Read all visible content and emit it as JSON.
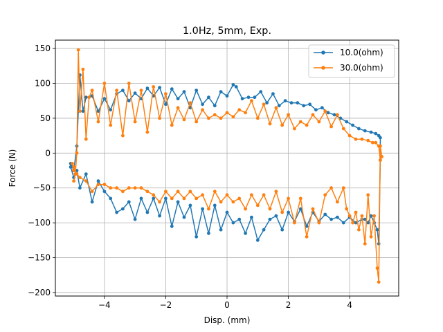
{
  "chart_data": {
    "type": "line",
    "title": "1.0Hz, 5mm, Exp.",
    "xlabel": "Disp. (mm)",
    "ylabel": "Force (N)",
    "xlim": [
      -5.6,
      5.6
    ],
    "ylim": [
      -205,
      162
    ],
    "xticks": [
      -4,
      -2,
      0,
      2,
      4
    ],
    "yticks": [
      -200,
      -150,
      -100,
      -50,
      0,
      50,
      100,
      150
    ],
    "grid": true,
    "legend_position": "top-right",
    "series": [
      {
        "name": "10.0(ohm)",
        "color": "#1f77b4",
        "x": [
          -5.0,
          -4.9,
          -4.8,
          -4.7,
          -4.6,
          -4.4,
          -4.2,
          -4.0,
          -3.8,
          -3.6,
          -3.4,
          -3.2,
          -3.0,
          -2.8,
          -2.6,
          -2.4,
          -2.2,
          -2.0,
          -1.8,
          -1.6,
          -1.4,
          -1.2,
          -1.0,
          -0.8,
          -0.6,
          -0.4,
          -0.2,
          0.0,
          0.2,
          0.3,
          0.5,
          0.7,
          0.9,
          1.1,
          1.3,
          1.5,
          1.7,
          1.9,
          2.1,
          2.3,
          2.5,
          2.7,
          2.9,
          3.1,
          3.3,
          3.5,
          3.7,
          3.9,
          4.1,
          4.3,
          4.5,
          4.7,
          4.85,
          4.95,
          5.0,
          5.0,
          4.95,
          4.9,
          4.8,
          4.7,
          4.6,
          4.5,
          4.4,
          4.2,
          4.0,
          3.8,
          3.6,
          3.4,
          3.2,
          3.0,
          2.8,
          2.6,
          2.4,
          2.2,
          2.0,
          1.8,
          1.6,
          1.4,
          1.2,
          1.0,
          0.8,
          0.6,
          0.4,
          0.2,
          0.0,
          -0.2,
          -0.4,
          -0.6,
          -0.8,
          -1.0,
          -1.2,
          -1.4,
          -1.6,
          -1.8,
          -2.0,
          -2.2,
          -2.4,
          -2.6,
          -2.8,
          -3.0,
          -3.2,
          -3.4,
          -3.6,
          -3.8,
          -4.0,
          -4.2,
          -4.4,
          -4.6,
          -4.8,
          -4.9,
          -5.0,
          -5.1,
          -5.1,
          -5.0
        ],
        "y": [
          -25,
          10,
          112,
          60,
          80,
          82,
          60,
          78,
          62,
          85,
          90,
          75,
          86,
          78,
          93,
          82,
          94,
          70,
          92,
          78,
          88,
          65,
          90,
          70,
          80,
          68,
          88,
          82,
          98,
          95,
          78,
          80,
          80,
          88,
          72,
          85,
          68,
          75,
          72,
          72,
          68,
          70,
          62,
          65,
          58,
          55,
          50,
          45,
          40,
          35,
          32,
          30,
          28,
          25,
          22,
          -10,
          -130,
          -110,
          -100,
          -90,
          -100,
          -95,
          -95,
          -100,
          -92,
          -100,
          -92,
          -95,
          -88,
          -98,
          -85,
          -105,
          -80,
          -98,
          -85,
          -110,
          -90,
          -95,
          -110,
          -125,
          -92,
          -115,
          -95,
          -100,
          -85,
          -110,
          -75,
          -115,
          -80,
          -120,
          -75,
          -92,
          -70,
          -105,
          -65,
          -90,
          -65,
          -85,
          -65,
          -95,
          -70,
          -80,
          -85,
          -65,
          -55,
          -40,
          -70,
          -30,
          -50,
          -25,
          -35,
          -20,
          -15,
          -25
        ]
      },
      {
        "name": "30.0(ohm)",
        "color": "#ff7f0e",
        "x": [
          -5.0,
          -4.95,
          -4.9,
          -4.85,
          -4.8,
          -4.7,
          -4.6,
          -4.5,
          -4.4,
          -4.2,
          -4.0,
          -3.8,
          -3.6,
          -3.4,
          -3.2,
          -3.0,
          -2.8,
          -2.6,
          -2.4,
          -2.2,
          -2.0,
          -1.8,
          -1.6,
          -1.4,
          -1.2,
          -1.0,
          -0.8,
          -0.6,
          -0.4,
          -0.2,
          0.0,
          0.2,
          0.4,
          0.6,
          0.8,
          1.0,
          1.2,
          1.4,
          1.6,
          1.8,
          2.0,
          2.2,
          2.4,
          2.6,
          2.8,
          3.0,
          3.2,
          3.4,
          3.6,
          3.8,
          4.0,
          4.2,
          4.4,
          4.6,
          4.75,
          4.85,
          4.95,
          5.0,
          5.05,
          5.0,
          4.95,
          4.9,
          4.8,
          4.7,
          4.6,
          4.5,
          4.4,
          4.3,
          4.2,
          4.1,
          4.0,
          3.9,
          3.8,
          3.6,
          3.4,
          3.2,
          3.0,
          2.8,
          2.6,
          2.4,
          2.2,
          2.0,
          1.8,
          1.6,
          1.4,
          1.2,
          1.0,
          0.8,
          0.6,
          0.4,
          0.2,
          0.0,
          -0.2,
          -0.4,
          -0.6,
          -0.8,
          -1.0,
          -1.2,
          -1.4,
          -1.6,
          -1.8,
          -2.0,
          -2.2,
          -2.4,
          -2.6,
          -2.8,
          -3.0,
          -3.2,
          -3.4,
          -3.6,
          -3.8,
          -4.0,
          -4.2,
          -4.4,
          -4.6,
          -4.8,
          -4.9,
          -5.0,
          -5.05,
          -5.0
        ],
        "y": [
          -40,
          -30,
          0,
          148,
          60,
          120,
          20,
          80,
          90,
          45,
          100,
          40,
          90,
          25,
          100,
          45,
          90,
          30,
          95,
          50,
          85,
          40,
          65,
          48,
          72,
          45,
          62,
          50,
          55,
          50,
          58,
          52,
          62,
          58,
          75,
          50,
          70,
          42,
          65,
          40,
          55,
          35,
          45,
          40,
          55,
          45,
          60,
          38,
          55,
          35,
          25,
          20,
          20,
          18,
          15,
          15,
          10,
          -10,
          -5,
          10,
          -185,
          -165,
          -90,
          -120,
          -60,
          -130,
          -90,
          -110,
          -85,
          -100,
          -90,
          -80,
          -50,
          -70,
          -50,
          -60,
          -100,
          -80,
          -120,
          -65,
          -100,
          -65,
          -85,
          -55,
          -80,
          -60,
          -75,
          -60,
          -80,
          -65,
          -70,
          -60,
          -70,
          -55,
          -80,
          -60,
          -65,
          -55,
          -65,
          -55,
          -65,
          -55,
          -70,
          -60,
          -55,
          -50,
          -50,
          -50,
          -55,
          -50,
          -50,
          -45,
          -45,
          -55,
          -40,
          -35,
          -30,
          -20,
          -15,
          -25
        ]
      }
    ]
  }
}
